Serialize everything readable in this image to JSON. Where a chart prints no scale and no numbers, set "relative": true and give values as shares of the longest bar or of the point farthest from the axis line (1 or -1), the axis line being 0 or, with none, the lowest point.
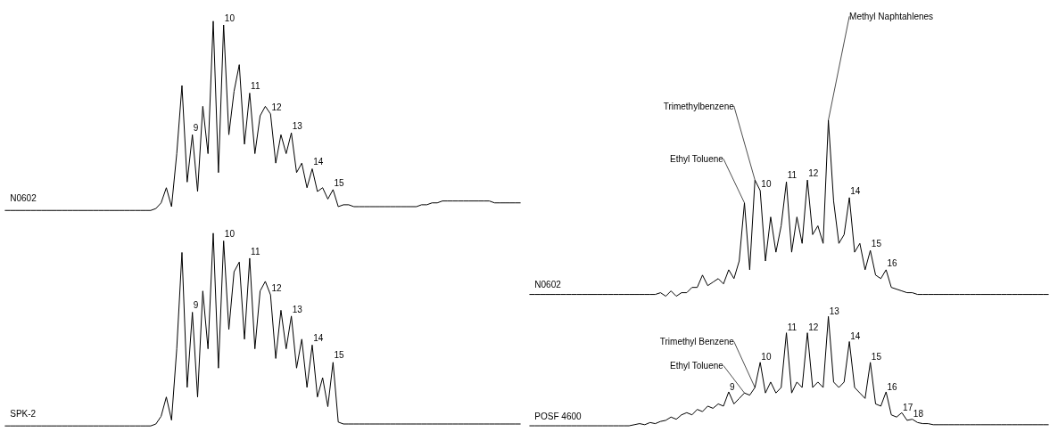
{
  "chart_data": [
    {
      "type": "line",
      "relative": true,
      "tick_labels": false,
      "categories": [
        null,
        null,
        null,
        null,
        null,
        null,
        null,
        null,
        null,
        null,
        null,
        null,
        null,
        null,
        null,
        null,
        null,
        null,
        null,
        null,
        null,
        null,
        null,
        null,
        null,
        null,
        null,
        null,
        null,
        null,
        null,
        null,
        null,
        null,
        null,
        null,
        null,
        null,
        null,
        null,
        null,
        null,
        null,
        null,
        null,
        null,
        null,
        null,
        null,
        null,
        null,
        null,
        null,
        null,
        null,
        null,
        null,
        null,
        null,
        null,
        null,
        null,
        null,
        null,
        null,
        null,
        null,
        null,
        null,
        null,
        null,
        null,
        null,
        null,
        null,
        null,
        null,
        null,
        null,
        null,
        null,
        null,
        null,
        null,
        null,
        null,
        null,
        null,
        null,
        null,
        null,
        null,
        null,
        null,
        null,
        null,
        null,
        null,
        null,
        null
      ],
      "series": [
        {
          "name": "N0602",
          "color": "#000000",
          "values": [
            0,
            0,
            0,
            0,
            0,
            0,
            0,
            0,
            0,
            0,
            0,
            0,
            0,
            0,
            0,
            0,
            0,
            0,
            0,
            0,
            0,
            0,
            0,
            0,
            0,
            0,
            0,
            0,
            0,
            0.01,
            0.04,
            0.12,
            0.02,
            0.3,
            0.66,
            0.15,
            0.4,
            0.1,
            0.55,
            0.3,
            1.0,
            0.2,
            0.98,
            0.4,
            0.63,
            0.77,
            0.35,
            0.62,
            0.3,
            0.5,
            0.55,
            0.51,
            0.25,
            0.4,
            0.3,
            0.41,
            0.2,
            0.25,
            0.12,
            0.22,
            0.1,
            0.12,
            0.06,
            0.11,
            0.02,
            0.03,
            0.03,
            0.02,
            0.02,
            0.02,
            0.02,
            0.02,
            0.02,
            0.02,
            0.02,
            0.02,
            0.02,
            0.02,
            0.02,
            0.02,
            0.03,
            0.03,
            0.04,
            0.04,
            0.05,
            0.05,
            0.05,
            0.05,
            0.05,
            0.05,
            0.05,
            0.05,
            0.05,
            0.05,
            0.04,
            0.04,
            0.04,
            0.04,
            0.04,
            0.04
          ]
        }
      ],
      "annotations": [
        "9",
        "10",
        "11",
        "12",
        "13",
        "14",
        "15"
      ]
    },
    {
      "type": "line",
      "relative": true,
      "tick_labels": false,
      "categories": [
        null,
        null,
        null,
        null,
        null,
        null,
        null,
        null,
        null,
        null,
        null,
        null,
        null,
        null,
        null,
        null,
        null,
        null,
        null,
        null,
        null,
        null,
        null,
        null,
        null,
        null,
        null,
        null,
        null,
        null,
        null,
        null,
        null,
        null,
        null,
        null,
        null,
        null,
        null,
        null,
        null,
        null,
        null,
        null,
        null,
        null,
        null,
        null,
        null,
        null,
        null,
        null,
        null,
        null,
        null,
        null,
        null,
        null,
        null,
        null,
        null,
        null,
        null,
        null,
        null,
        null,
        null,
        null,
        null,
        null,
        null,
        null,
        null,
        null,
        null,
        null,
        null,
        null,
        null,
        null,
        null,
        null,
        null,
        null,
        null,
        null,
        null,
        null,
        null,
        null,
        null,
        null,
        null,
        null,
        null,
        null,
        null,
        null,
        null,
        null
      ],
      "series": [
        {
          "name": "N0602",
          "color": "#000000",
          "values": [
            0.01,
            0.01,
            0.01,
            0.01,
            0.01,
            0.01,
            0.01,
            0.01,
            0.01,
            0.01,
            0.01,
            0.01,
            0.01,
            0.01,
            0.01,
            0.01,
            0.01,
            0.01,
            0.01,
            0.01,
            0.01,
            0.01,
            0.01,
            0.01,
            0.01,
            0.02,
            0.0,
            0.03,
            0.0,
            0.02,
            0.02,
            0.05,
            0.05,
            0.12,
            0.06,
            0.08,
            0.1,
            0.07,
            0.15,
            0.1,
            0.2,
            0.53,
            0.15,
            0.66,
            0.6,
            0.2,
            0.45,
            0.25,
            0.4,
            0.65,
            0.25,
            0.45,
            0.3,
            0.66,
            0.35,
            0.4,
            0.3,
            1.0,
            0.54,
            0.3,
            0.35,
            0.56,
            0.25,
            0.3,
            0.15,
            0.26,
            0.12,
            0.1,
            0.15,
            0.05,
            0.04,
            0.03,
            0.02,
            0.02,
            0.01,
            0.01,
            0.01,
            0.01,
            0.01,
            0.01,
            0.01,
            0.01,
            0.01,
            0.01,
            0.01,
            0.01,
            0.01,
            0.01,
            0.01,
            0.01,
            0.01,
            0.01,
            0.01,
            0.01,
            0.01,
            0.01,
            0.01,
            0.01,
            0.01,
            0.01
          ]
        }
      ],
      "annotations": [
        "Ethyl Toluene",
        "Trimethylbenzene",
        "10",
        "11",
        "12",
        "Methyl Naphtahlenes",
        "14",
        "15",
        "16"
      ]
    },
    {
      "type": "line",
      "relative": true,
      "tick_labels": false,
      "categories": [
        null,
        null,
        null,
        null,
        null,
        null,
        null,
        null,
        null,
        null,
        null,
        null,
        null,
        null,
        null,
        null,
        null,
        null,
        null,
        null,
        null,
        null,
        null,
        null,
        null,
        null,
        null,
        null,
        null,
        null,
        null,
        null,
        null,
        null,
        null,
        null,
        null,
        null,
        null,
        null,
        null,
        null,
        null,
        null,
        null,
        null,
        null,
        null,
        null,
        null,
        null,
        null,
        null,
        null,
        null,
        null,
        null,
        null,
        null,
        null,
        null,
        null,
        null,
        null,
        null,
        null,
        null,
        null,
        null,
        null,
        null,
        null,
        null,
        null,
        null,
        null,
        null,
        null,
        null,
        null,
        null,
        null,
        null,
        null,
        null,
        null,
        null,
        null,
        null,
        null,
        null,
        null,
        null,
        null,
        null,
        null,
        null,
        null,
        null,
        null
      ],
      "series": [
        {
          "name": "SPK-2",
          "color": "#000000",
          "values": [
            0,
            0,
            0,
            0,
            0,
            0,
            0,
            0,
            0,
            0,
            0,
            0,
            0,
            0,
            0,
            0,
            0,
            0,
            0,
            0,
            0,
            0,
            0,
            0,
            0,
            0,
            0,
            0,
            0,
            0.01,
            0.05,
            0.15,
            0.03,
            0.4,
            0.9,
            0.2,
            0.59,
            0.15,
            0.7,
            0.4,
            1.0,
            0.3,
            0.96,
            0.5,
            0.8,
            0.85,
            0.45,
            0.87,
            0.4,
            0.7,
            0.75,
            0.68,
            0.35,
            0.6,
            0.4,
            0.57,
            0.3,
            0.45,
            0.2,
            0.42,
            0.15,
            0.25,
            0.1,
            0.33,
            0.02,
            0.01,
            0.01,
            0.01,
            0.01,
            0.01,
            0.01,
            0.01,
            0.01,
            0.01,
            0.01,
            0.01,
            0.01,
            0.01,
            0.01,
            0.01,
            0.01,
            0.01,
            0.01,
            0.01,
            0.01,
            0.01,
            0.01,
            0.01,
            0.01,
            0.01,
            0.01,
            0.01,
            0.01,
            0.01,
            0.01,
            0.01,
            0.01,
            0.01,
            0.01,
            0.01
          ]
        }
      ],
      "annotations": [
        "9",
        "10",
        "11",
        "12",
        "13",
        "14",
        "15"
      ]
    },
    {
      "type": "line",
      "relative": true,
      "tick_labels": false,
      "categories": [
        null,
        null,
        null,
        null,
        null,
        null,
        null,
        null,
        null,
        null,
        null,
        null,
        null,
        null,
        null,
        null,
        null,
        null,
        null,
        null,
        null,
        null,
        null,
        null,
        null,
        null,
        null,
        null,
        null,
        null,
        null,
        null,
        null,
        null,
        null,
        null,
        null,
        null,
        null,
        null,
        null,
        null,
        null,
        null,
        null,
        null,
        null,
        null,
        null,
        null,
        null,
        null,
        null,
        null,
        null,
        null,
        null,
        null,
        null,
        null,
        null,
        null,
        null,
        null,
        null,
        null,
        null,
        null,
        null,
        null,
        null,
        null,
        null,
        null,
        null,
        null,
        null,
        null,
        null,
        null,
        null,
        null,
        null,
        null,
        null,
        null,
        null,
        null,
        null,
        null,
        null,
        null,
        null,
        null,
        null,
        null,
        null,
        null,
        null,
        null
      ],
      "series": [
        {
          "name": "POSF 4600",
          "color": "#000000",
          "values": [
            0,
            0,
            0,
            0,
            0,
            0,
            0,
            0,
            0,
            0,
            0,
            0,
            0,
            0,
            0,
            0,
            0,
            0,
            0,
            0,
            0.01,
            0.02,
            0.01,
            0.03,
            0.02,
            0.04,
            0.05,
            0.08,
            0.06,
            0.1,
            0.12,
            0.1,
            0.15,
            0.13,
            0.18,
            0.16,
            0.2,
            0.18,
            0.31,
            0.2,
            0.25,
            0.3,
            0.28,
            0.35,
            0.58,
            0.3,
            0.4,
            0.3,
            0.35,
            0.85,
            0.3,
            0.4,
            0.35,
            0.85,
            0.35,
            0.4,
            0.35,
            1.0,
            0.4,
            0.35,
            0.4,
            0.77,
            0.35,
            0.3,
            0.25,
            0.58,
            0.2,
            0.18,
            0.31,
            0.1,
            0.08,
            0.12,
            0.05,
            0.06,
            0.03,
            0.02,
            0.02,
            0.01,
            0.01,
            0.01,
            0.01,
            0.01,
            0.01,
            0.01,
            0.01,
            0.01,
            0.01,
            0.01,
            0.01,
            0.01,
            0.01,
            0.01,
            0.01,
            0.01,
            0.01,
            0.01,
            0.01,
            0.01,
            0.01,
            0.01
          ]
        }
      ],
      "annotations": [
        "9",
        "Ethyl Toluene",
        "Trimethyl Benzene",
        "10",
        "11",
        "12",
        "13",
        "14",
        "15",
        "16",
        "17",
        "18"
      ]
    }
  ]
}
